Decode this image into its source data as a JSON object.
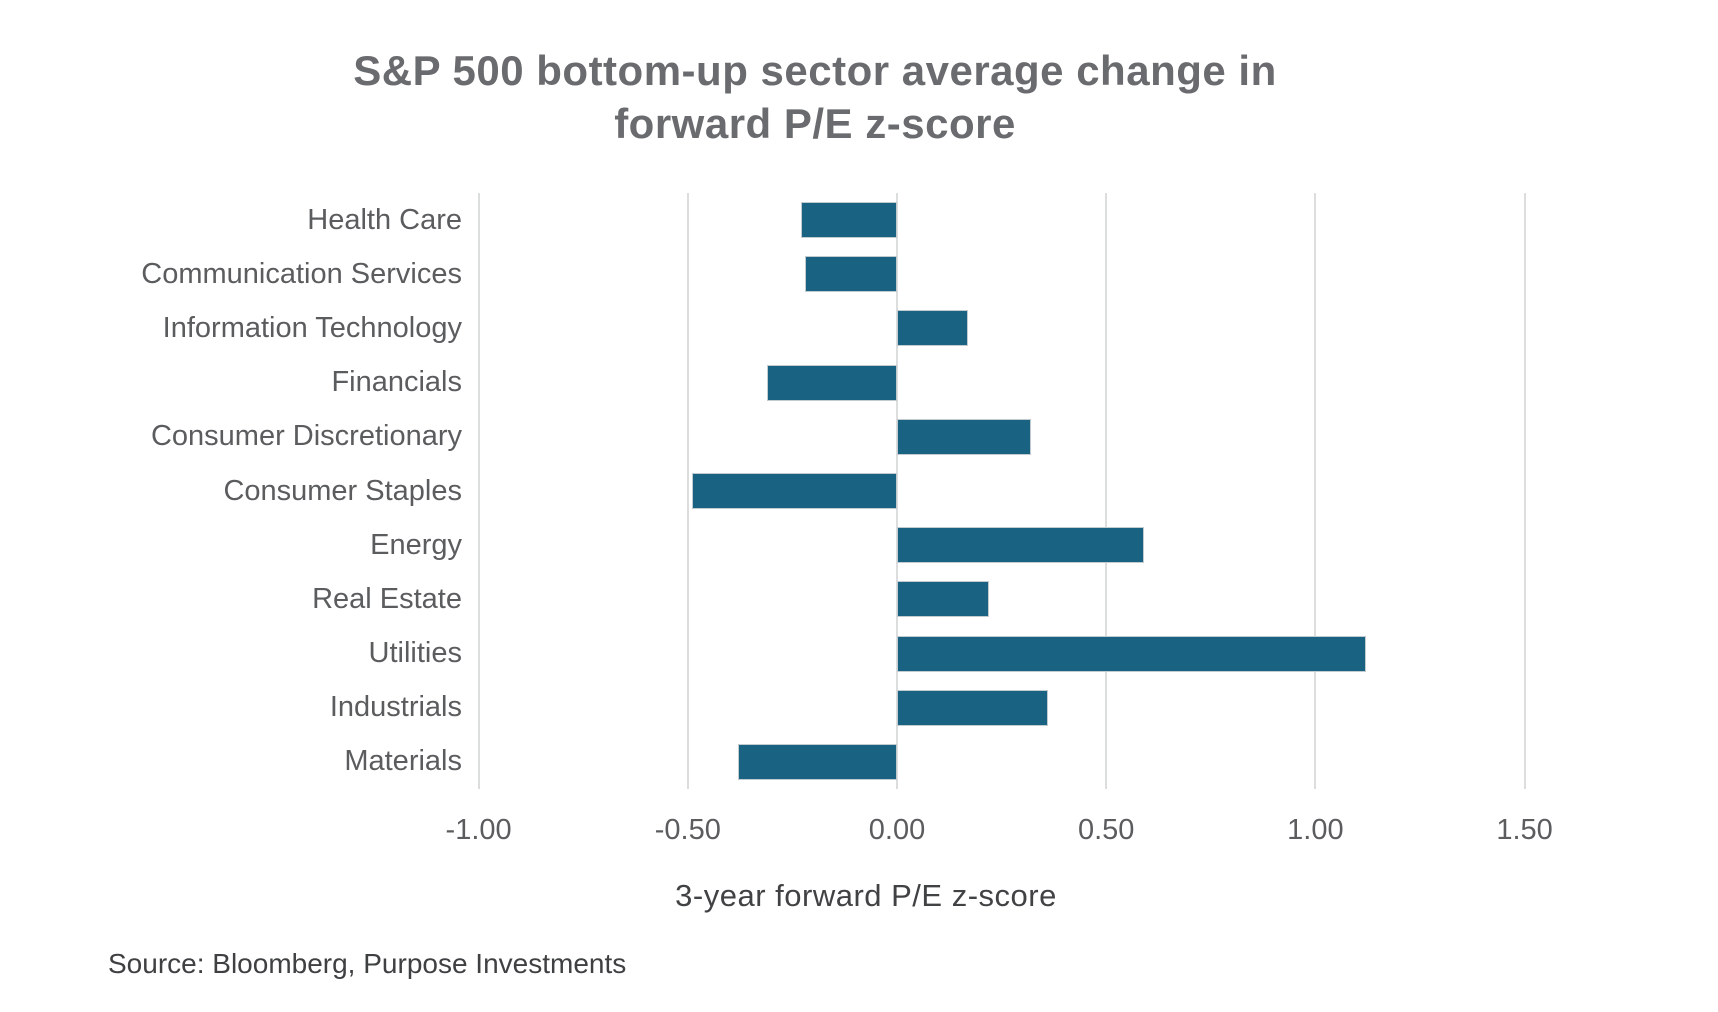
{
  "title": {
    "line1": "S&P 500 bottom-up sector average change in",
    "line2": "forward P/E z-score"
  },
  "source": "Source: Bloomberg, Purpose Investments",
  "colors": {
    "bar": "#1a6281",
    "gridline": "#dcdddd",
    "title_text": "#6a6b6e",
    "label_text": "#5b5c5e",
    "axis_label_text": "#414244",
    "background": "#ffffff"
  },
  "chart_data": {
    "type": "bar",
    "orientation": "horizontal",
    "title": "S&P 500 bottom-up sector average change in forward P/E z-score",
    "categories": [
      "Health Care",
      "Communication Services",
      "Information Technology",
      "Financials",
      "Consumer Discretionary",
      "Consumer Staples",
      "Energy",
      "Real Estate",
      "Utilities",
      "Industrials",
      "Materials"
    ],
    "values": [
      -0.23,
      -0.22,
      0.17,
      -0.31,
      0.32,
      -0.49,
      0.59,
      0.22,
      1.12,
      0.36,
      -0.38
    ],
    "xlabel": "3-year forward P/E z-score",
    "xlim": [
      -1.0,
      1.5
    ],
    "xticks": [
      -1.0,
      -0.5,
      0.0,
      0.5,
      1.0,
      1.5
    ],
    "xtick_labels": [
      "-1.00",
      "-0.50",
      "0.00",
      "0.50",
      "1.00",
      "1.50"
    ],
    "grid": "vertical",
    "legend": "none",
    "bar_color": "#1a6281"
  }
}
